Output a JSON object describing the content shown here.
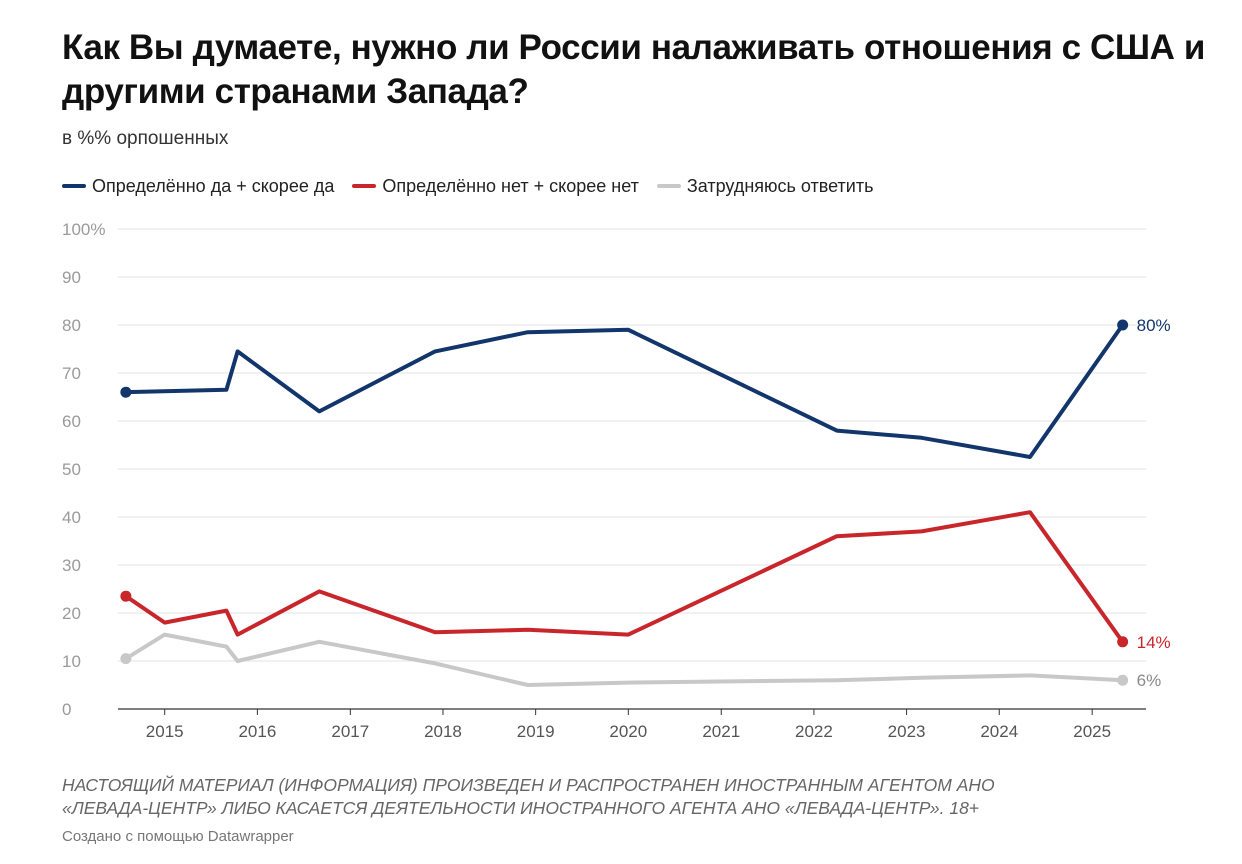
{
  "header": {
    "title": "Как Вы думаете, нужно ли России налаживать отношения с США и другими странами Запада?",
    "subtitle": "в %% орпошенных"
  },
  "legend": [
    {
      "label": "Определённо да + скорее да",
      "color": "#12366b"
    },
    {
      "label": "Определённо нет + скорее нет",
      "color": "#c8262b"
    },
    {
      "label": "Затрудняюсь ответить",
      "color": "#c8c8c8"
    }
  ],
  "chart_data": {
    "type": "line",
    "ylim": [
      0,
      100
    ],
    "yticks": [
      {
        "value": 0,
        "label": "0"
      },
      {
        "value": 10,
        "label": "10"
      },
      {
        "value": 20,
        "label": "20"
      },
      {
        "value": 30,
        "label": "30"
      },
      {
        "value": 40,
        "label": "40"
      },
      {
        "value": 50,
        "label": "50"
      },
      {
        "value": 60,
        "label": "60"
      },
      {
        "value": 70,
        "label": "70"
      },
      {
        "value": 80,
        "label": "80"
      },
      {
        "value": 90,
        "label": "90"
      },
      {
        "value": 100,
        "label": "100%"
      }
    ],
    "xlim": [
      "2014-07-01",
      "2025-08-01"
    ],
    "xticks": [
      {
        "value": "2015-01-01",
        "label": "2015"
      },
      {
        "value": "2016-01-01",
        "label": "2016"
      },
      {
        "value": "2017-01-01",
        "label": "2017"
      },
      {
        "value": "2018-01-01",
        "label": "2018"
      },
      {
        "value": "2019-01-01",
        "label": "2019"
      },
      {
        "value": "2020-01-01",
        "label": "2020"
      },
      {
        "value": "2021-01-01",
        "label": "2021"
      },
      {
        "value": "2022-01-01",
        "label": "2022"
      },
      {
        "value": "2023-01-01",
        "label": "2023"
      },
      {
        "value": "2024-01-01",
        "label": "2024"
      },
      {
        "value": "2025-01-01",
        "label": "2025"
      }
    ],
    "series": [
      {
        "name": "Определённо да + скорее да",
        "color": "#12366b",
        "x": [
          "2014-08-01",
          "2015-09-01",
          "2015-10-15",
          "2016-09-01",
          "2017-12-01",
          "2018-12-01",
          "2020-01-01",
          "2022-04-01",
          "2023-03-01",
          "2024-05-01",
          "2025-05-01"
        ],
        "y": [
          66,
          66.5,
          74.5,
          62,
          74.5,
          78.5,
          79,
          58,
          56.5,
          52.5,
          80
        ],
        "end_label": "80%"
      },
      {
        "name": "Определённо нет + скорее нет",
        "color": "#c8262b",
        "x": [
          "2014-08-01",
          "2015-01-01",
          "2015-09-01",
          "2015-10-15",
          "2016-09-01",
          "2017-12-01",
          "2018-12-01",
          "2020-01-01",
          "2022-04-01",
          "2023-03-01",
          "2024-05-01",
          "2025-05-01"
        ],
        "y": [
          23.5,
          18,
          20.5,
          15.5,
          24.5,
          16,
          16.5,
          15.5,
          36,
          37,
          41,
          14
        ],
        "end_label": "14%"
      },
      {
        "name": "Затрудняюсь ответить",
        "color": "#c8c8c8",
        "x": [
          "2014-08-01",
          "2015-01-01",
          "2015-09-01",
          "2015-10-15",
          "2016-09-01",
          "2017-12-01",
          "2018-12-01",
          "2020-01-01",
          "2022-04-01",
          "2023-03-01",
          "2024-05-01",
          "2025-05-01"
        ],
        "y": [
          10.5,
          15.5,
          13,
          10,
          14,
          9.5,
          5,
          5.5,
          6,
          6.5,
          7,
          6
        ],
        "end_label": "6%"
      }
    ]
  },
  "footer": {
    "note_line1": "НАСТОЯЩИЙ МАТЕРИАЛ (ИНФОРМАЦИЯ) ПРОИЗВЕДЕН И РАСПРОСТРАНЕН ИНОСТРАННЫМ АГЕНТОМ АНО",
    "note_line2": "«ЛЕВАДА-ЦЕНТР» ЛИБО КАСАЕТСЯ ДЕЯТЕЛЬНОСТИ ИНОСТРАННОГО АГЕНТА АНО «ЛЕВАДА-ЦЕНТР». 18+",
    "credit": "Создано с помощью Datawrapper"
  }
}
